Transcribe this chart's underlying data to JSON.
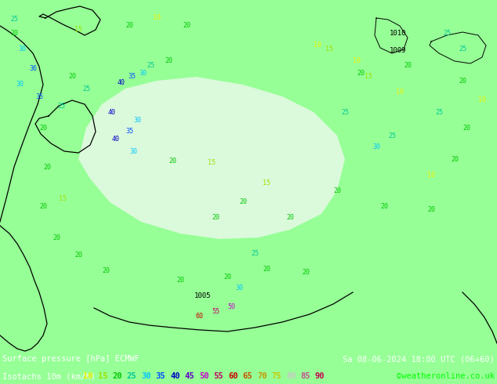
{
  "title_line1_left": "Surface pressure [hPa] ECMWF",
  "title_line1_right": "Sa 08-06-2024 18:00 UTC (06+60)",
  "title_line2_left": "Isotachs 10m (km/h)",
  "title_line2_right": "©weatheronline.co.uk",
  "isotach_values": [
    "10",
    "15",
    "20",
    "25",
    "30",
    "35",
    "40",
    "45",
    "50",
    "55",
    "60",
    "65",
    "70",
    "75",
    "80",
    "85",
    "90"
  ],
  "isotach_colors": [
    "#f0f000",
    "#a0e000",
    "#00c800",
    "#00c896",
    "#00c8ff",
    "#0050ff",
    "#0000c8",
    "#6400c8",
    "#c800c8",
    "#c80064",
    "#c80000",
    "#c85000",
    "#c89600",
    "#c8c800",
    "#c8c8c8",
    "#c85096",
    "#c80050"
  ],
  "bg_color": "#96ff96",
  "bottom_bg": "#000000",
  "bottom_text_white": "#ffffff",
  "bottom_copyright_color": "#00ff00",
  "map_light_area_color": "#d8f8d8",
  "map_white_area_color": "#f0f8f0"
}
